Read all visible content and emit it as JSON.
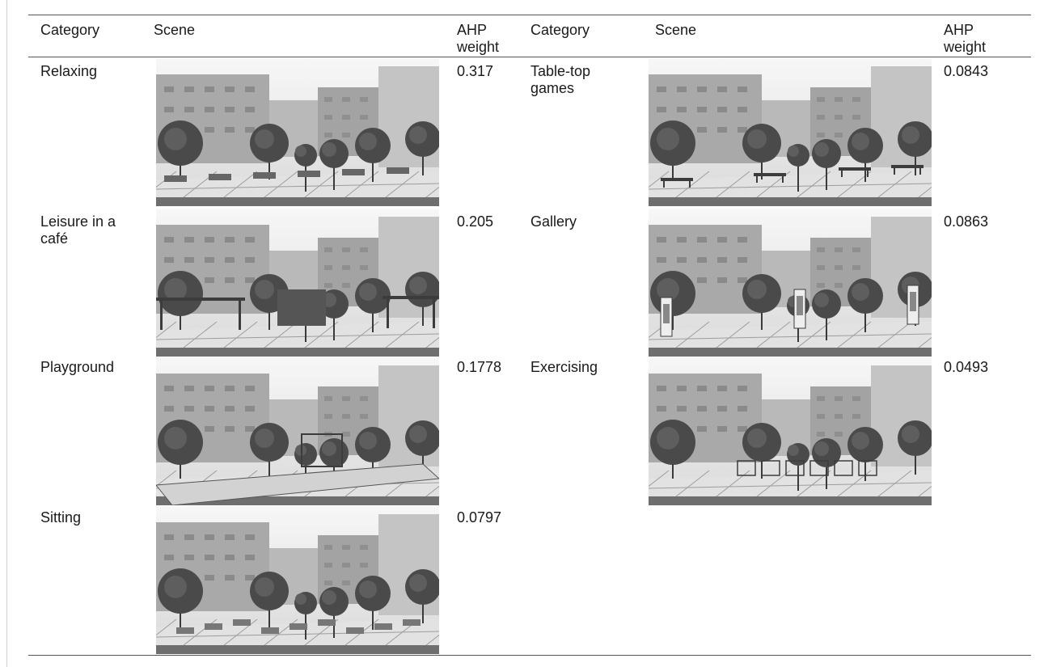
{
  "headers": {
    "left": {
      "category": "Category",
      "scene": "Scene",
      "weight": "AHP weight"
    },
    "right": {
      "category": "Category",
      "scene": "Scene",
      "weight": "AHP weight"
    }
  },
  "rows_left": [
    {
      "category": "Relaxing",
      "weight": "0.317"
    },
    {
      "category": "Leisure in a café",
      "weight": "0.205"
    },
    {
      "category": "Playground",
      "weight": "0.1778"
    },
    {
      "category": "Sitting",
      "weight": "0.0797"
    }
  ],
  "rows_right": [
    {
      "category": "Table-top games",
      "weight": "0.0843"
    },
    {
      "category": "Gallery",
      "weight": "0.0863"
    },
    {
      "category": "Exercising",
      "weight": "0.0493"
    }
  ]
}
